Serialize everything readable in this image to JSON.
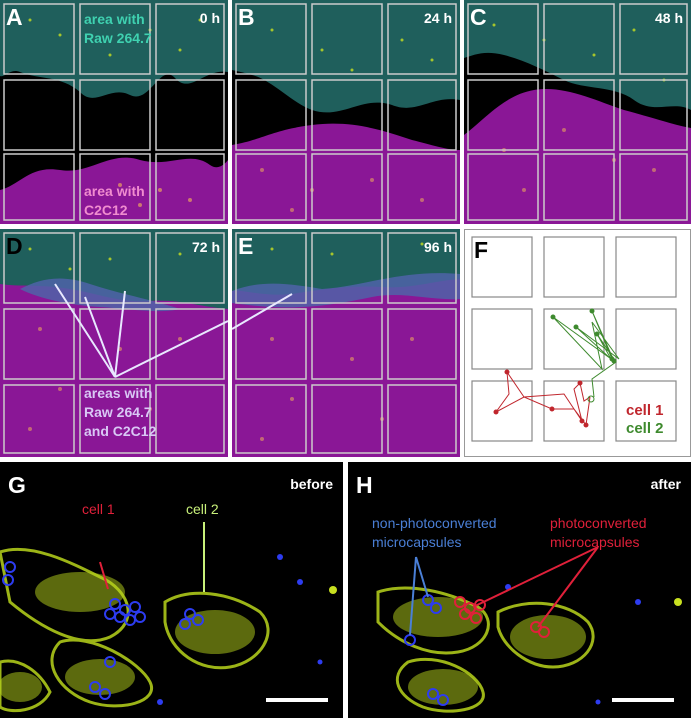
{
  "panels": {
    "A": {
      "letter": "A",
      "time": "0 h"
    },
    "B": {
      "letter": "B",
      "time": "24 h"
    },
    "C": {
      "letter": "C",
      "time": "48 h"
    },
    "D": {
      "letter": "D",
      "time": "72 h"
    },
    "E": {
      "letter": "E",
      "time": "96 h"
    },
    "F": {
      "letter": "F"
    },
    "G": {
      "letter": "G",
      "state": "before"
    },
    "H": {
      "letter": "H",
      "state": "after"
    }
  },
  "labels": {
    "raw_area": "area with\nRaw 264.7",
    "c2c12_area": "area with\nC2C12",
    "mixed_area": "areas with\nRaw 264.7\nand C2C12",
    "cell1": "cell 1",
    "cell2": "cell 2",
    "non_photo": "non-photoconverted\nmicrocapsules",
    "photo": "photoconverted\nmicrocapsules"
  },
  "colors": {
    "raw_teal": "#1f5f5c",
    "c2c12_magenta": "#8a1796",
    "mixed_blue": "#4f63a8",
    "cell1_red": "#c0262d",
    "cell2_green": "#3e8a2e",
    "label_teal": "#3fd1b0",
    "label_pink": "#f08ccf",
    "label_lavender": "#d9c8f5",
    "fluor_yellow": "#c8e020",
    "capsule_blue": "#2d3cf0",
    "capsule_red": "#e0203a"
  }
}
